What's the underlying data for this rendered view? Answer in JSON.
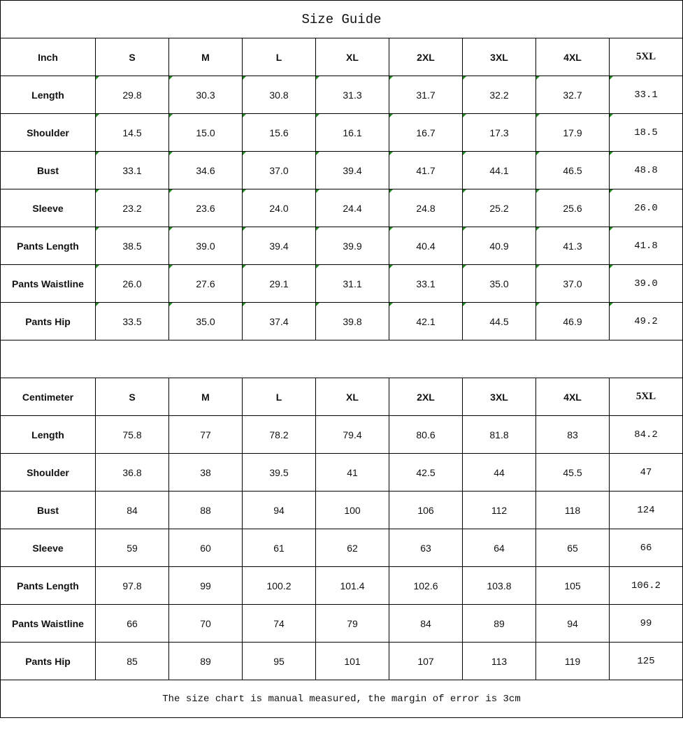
{
  "title": "Size Guide",
  "sizes": [
    "S",
    "M",
    "L",
    "XL",
    "2XL",
    "3XL",
    "4XL",
    "5XL"
  ],
  "tables": [
    {
      "unit": "Inch",
      "rows": [
        {
          "label": "Length",
          "values": [
            "29.8",
            "30.3",
            "30.8",
            "31.3",
            "31.7",
            "32.2",
            "32.7",
            "33.1"
          ]
        },
        {
          "label": "Shoulder",
          "values": [
            "14.5",
            "15.0",
            "15.6",
            "16.1",
            "16.7",
            "17.3",
            "17.9",
            "18.5"
          ]
        },
        {
          "label": "Bust",
          "values": [
            "33.1",
            "34.6",
            "37.0",
            "39.4",
            "41.7",
            "44.1",
            "46.5",
            "48.8"
          ]
        },
        {
          "label": "Sleeve",
          "values": [
            "23.2",
            "23.6",
            "24.0",
            "24.4",
            "24.8",
            "25.2",
            "25.6",
            "26.0"
          ]
        },
        {
          "label": "Pants Length",
          "values": [
            "38.5",
            "39.0",
            "39.4",
            "39.9",
            "40.4",
            "40.9",
            "41.3",
            "41.8"
          ]
        },
        {
          "label": "Pants Waistline",
          "values": [
            "26.0",
            "27.6",
            "29.1",
            "31.1",
            "33.1",
            "35.0",
            "37.0",
            "39.0"
          ]
        },
        {
          "label": "Pants Hip",
          "values": [
            "33.5",
            "35.0",
            "37.4",
            "39.8",
            "42.1",
            "44.5",
            "46.9",
            "49.2"
          ]
        }
      ]
    },
    {
      "unit": "Centimeter",
      "rows": [
        {
          "label": "Length",
          "values": [
            "75.8",
            "77",
            "78.2",
            "79.4",
            "80.6",
            "81.8",
            "83",
            "84.2"
          ]
        },
        {
          "label": "Shoulder",
          "values": [
            "36.8",
            "38",
            "39.5",
            "41",
            "42.5",
            "44",
            "45.5",
            "47"
          ]
        },
        {
          "label": "Bust",
          "values": [
            "84",
            "88",
            "94",
            "100",
            "106",
            "112",
            "118",
            "124"
          ]
        },
        {
          "label": "Sleeve",
          "values": [
            "59",
            "60",
            "61",
            "62",
            "63",
            "64",
            "65",
            "66"
          ]
        },
        {
          "label": "Pants Length",
          "values": [
            "97.8",
            "99",
            "100.2",
            "101.4",
            "102.6",
            "103.8",
            "105",
            "106.2"
          ]
        },
        {
          "label": "Pants Waistline",
          "values": [
            "66",
            "70",
            "74",
            "79",
            "84",
            "89",
            "94",
            "99"
          ]
        },
        {
          "label": "Pants Hip",
          "values": [
            "85",
            "89",
            "95",
            "101",
            "107",
            "113",
            "119",
            "125"
          ]
        }
      ]
    }
  ],
  "footer": "The size chart is manual measured, the margin of error is 3cm",
  "colors": {
    "border": "#000000",
    "error_tick": "#1a8a1a"
  }
}
